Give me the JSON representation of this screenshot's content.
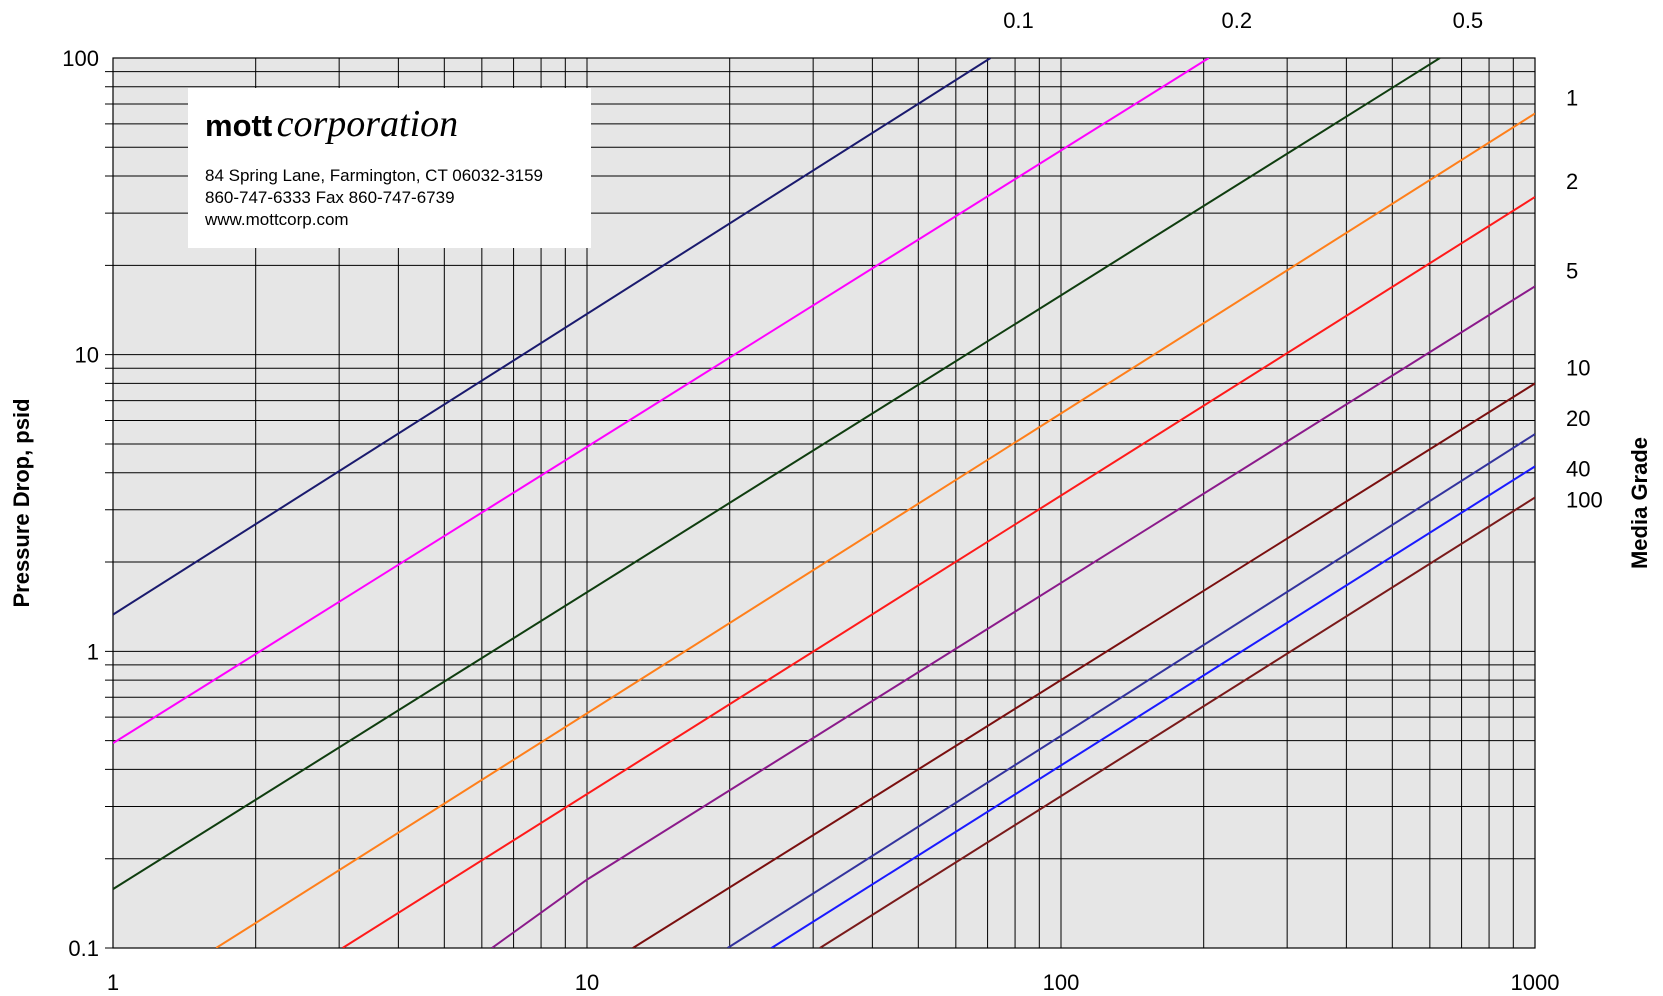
{
  "company": {
    "name_bold": "mott",
    "name_italic": "corporation",
    "address": "84 Spring Lane, Farmington, CT 06032-3159",
    "phone": "860-747-6333  Fax 860-747-6739",
    "website": "www.mottcorp.com"
  },
  "chart_data": {
    "type": "line",
    "title": "",
    "xlabel": "",
    "ylabel": "Pressure Drop, psid",
    "right_label": "Media Grade",
    "x_scale": "log",
    "y_scale": "log",
    "xlim": [
      1,
      1000
    ],
    "ylim": [
      0.1,
      100
    ],
    "grid": true,
    "x_ticks": [
      "1",
      "10",
      "100",
      "1000"
    ],
    "y_ticks": [
      "0.1",
      "1",
      "10",
      "100"
    ],
    "series": [
      {
        "name": "0.1",
        "color": "#1a1a6e",
        "x": [
          1,
          71
        ],
        "y": [
          1.33,
          100
        ]
      },
      {
        "name": "0.2",
        "color": "#ff00ff",
        "x": [
          1,
          205
        ],
        "y": [
          0.49,
          100
        ]
      },
      {
        "name": "0.5",
        "color": "#0f3d0f",
        "x": [
          1,
          630
        ],
        "y": [
          0.158,
          100
        ]
      },
      {
        "name": "1",
        "color": "#ff7f1a",
        "x": [
          1.65,
          1000
        ],
        "y": [
          0.1,
          65
        ]
      },
      {
        "name": "2",
        "color": "#ff1a1a",
        "x": [
          3.05,
          1000
        ],
        "y": [
          0.1,
          34
        ]
      },
      {
        "name": "5",
        "color": "#8b1a8b",
        "x": [
          6.3,
          10,
          1000
        ],
        "y": [
          0.1,
          0.17,
          17
        ]
      },
      {
        "name": "10",
        "color": "#7a0f0f",
        "x": [
          12.5,
          1000
        ],
        "y": [
          0.1,
          8
        ]
      },
      {
        "name": "20",
        "color": "#33339e",
        "x": [
          19.8,
          1000
        ],
        "y": [
          0.1,
          5.4
        ]
      },
      {
        "name": "40",
        "color": "#1a1aff",
        "x": [
          24.5,
          1000
        ],
        "y": [
          0.1,
          4.2
        ]
      },
      {
        "name": "100",
        "color": "#7a1a1a",
        "x": [
          31,
          1000
        ],
        "y": [
          0.1,
          3.3
        ]
      }
    ]
  }
}
